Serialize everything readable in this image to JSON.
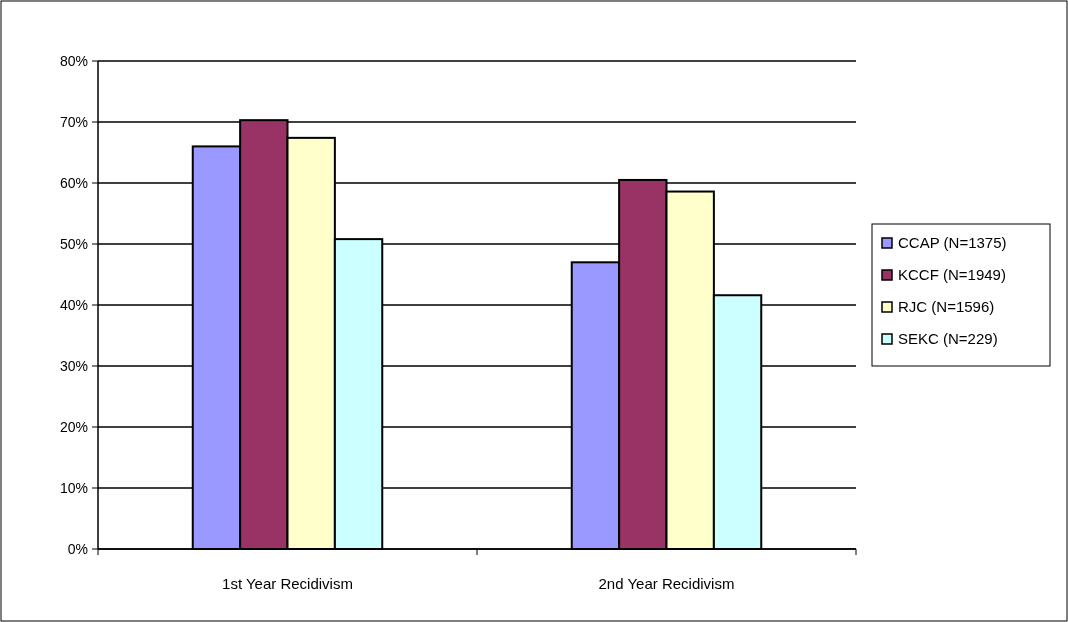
{
  "chart_data": {
    "type": "bar",
    "categories": [
      "1st Year Recidivism",
      "2nd Year Recidivism"
    ],
    "series": [
      {
        "name": "CCAP (N=1375)",
        "color": "#9999ff",
        "values": [
          66,
          47
        ]
      },
      {
        "name": "KCCF (N=1949)",
        "color": "#993366",
        "values": [
          70.3,
          60.5
        ]
      },
      {
        "name": "RJC (N=1596)",
        "color": "#ffffcc",
        "values": [
          67.4,
          58.6
        ]
      },
      {
        "name": "SEKC (N=229)",
        "color": "#ccffff",
        "values": [
          50.8,
          41.6
        ]
      }
    ],
    "ylim": [
      0,
      80
    ],
    "yticks": [
      {
        "value": 0,
        "label": "0%"
      },
      {
        "value": 10,
        "label": "10%"
      },
      {
        "value": 20,
        "label": "20%"
      },
      {
        "value": 30,
        "label": "30%"
      },
      {
        "value": 40,
        "label": "40%"
      },
      {
        "value": 50,
        "label": "50%"
      },
      {
        "value": 60,
        "label": "60%"
      },
      {
        "value": 70,
        "label": "70%"
      },
      {
        "value": 80,
        "label": "80%"
      }
    ],
    "grid": "y",
    "legend": "right"
  }
}
